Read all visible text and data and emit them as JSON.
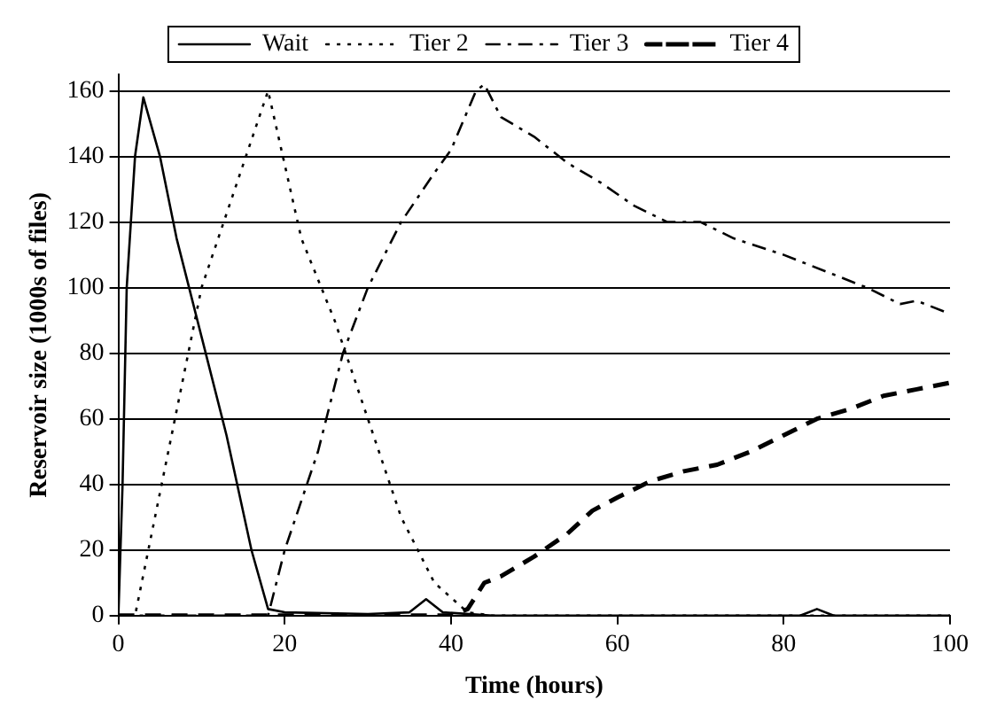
{
  "chart_data": {
    "type": "line",
    "xlabel": "Time (hours)",
    "ylabel": "Reservoir size (1000s of files)",
    "xlim": [
      0,
      100
    ],
    "ylim": [
      0,
      165
    ],
    "xticks": [
      0,
      20,
      40,
      60,
      80,
      100
    ],
    "yticks": [
      0,
      20,
      40,
      60,
      80,
      100,
      120,
      140,
      160
    ],
    "grid": "y",
    "legend": "top",
    "marker": "none",
    "series": [
      {
        "name": "Wait",
        "color": "#000000",
        "line_style": "solid",
        "x": [
          0,
          0.5,
          1,
          2,
          3,
          5,
          7,
          10,
          13,
          16,
          18,
          20,
          30,
          35,
          37,
          39,
          45,
          82,
          84,
          86,
          100
        ],
        "values": [
          0,
          40,
          100,
          140,
          158,
          140,
          115,
          85,
          55,
          20,
          2,
          1,
          0.5,
          1,
          5,
          1,
          0,
          0,
          2,
          0,
          0
        ]
      },
      {
        "name": "Tier 2",
        "color": "#000000",
        "line_style": "dotted",
        "x": [
          0,
          2,
          6,
          10,
          14,
          18,
          22,
          26,
          30,
          34,
          38,
          42,
          45,
          100
        ],
        "values": [
          0,
          0,
          50,
          100,
          130,
          160,
          115,
          90,
          60,
          30,
          10,
          1,
          0,
          0
        ]
      },
      {
        "name": "Tier 3",
        "color": "#000000",
        "line_style": "dashed",
        "x": [
          0,
          18,
          20,
          24,
          27,
          30,
          34,
          38,
          40,
          43,
          44,
          46,
          50,
          54,
          58,
          62,
          66,
          70,
          74,
          80,
          86,
          90,
          94,
          96,
          100
        ],
        "values": [
          0,
          0,
          20,
          50,
          80,
          100,
          120,
          135,
          142,
          160,
          162,
          152,
          146,
          138,
          132,
          125,
          120,
          120,
          115,
          110,
          104,
          100,
          95,
          96,
          92
        ]
      },
      {
        "name": "Tier 4",
        "color": "#000000",
        "line_style": "dashed",
        "x": [
          0,
          40,
          42,
          44,
          46,
          50,
          54,
          57,
          60,
          64,
          68,
          72,
          76,
          80,
          84,
          88,
          92,
          96,
          100
        ],
        "values": [
          0,
          0,
          2,
          10,
          12,
          18,
          25,
          32,
          36,
          41,
          44,
          46,
          50,
          55,
          60,
          63,
          67,
          69,
          71
        ]
      }
    ]
  }
}
